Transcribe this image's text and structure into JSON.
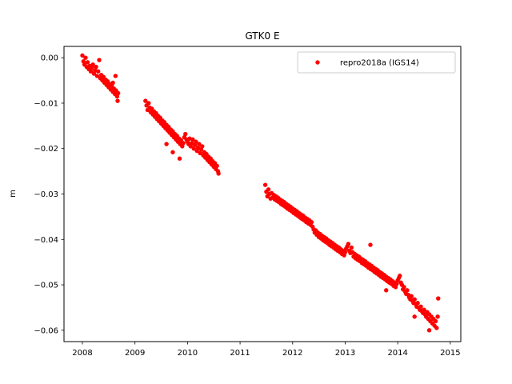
{
  "chart_data": {
    "type": "scatter",
    "title": "GTK0 E",
    "xlabel": "",
    "ylabel": "m",
    "xlim": [
      2007.65,
      2015.2
    ],
    "ylim": [
      -0.0625,
      0.0025
    ],
    "x_ticks": [
      2008,
      2009,
      2010,
      2011,
      2012,
      2013,
      2014,
      2015
    ],
    "x_tick_labels": [
      "2008",
      "2009",
      "2010",
      "2011",
      "2012",
      "2013",
      "2014",
      "2015"
    ],
    "y_ticks": [
      0.0,
      -0.01,
      -0.02,
      -0.03,
      -0.04,
      -0.05,
      -0.06
    ],
    "y_tick_labels": [
      "0.00",
      "−0.01",
      "−0.02",
      "−0.03",
      "−0.04",
      "−0.05",
      "−0.06"
    ],
    "grid": false,
    "legend_position": "top-right",
    "series": [
      {
        "name": "repro2018a (IGS14)",
        "color": "#ff0000",
        "marker": "circle",
        "points": [
          [
            2008.0,
            0.0005
          ],
          [
            2008.02,
            -0.0008
          ],
          [
            2008.04,
            -0.0015
          ],
          [
            2008.06,
            0.0
          ],
          [
            2008.08,
            -0.002
          ],
          [
            2008.1,
            -0.001
          ],
          [
            2008.12,
            -0.0025
          ],
          [
            2008.14,
            -0.0018
          ],
          [
            2008.16,
            -0.003
          ],
          [
            2008.18,
            -0.0022
          ],
          [
            2008.2,
            -0.0015
          ],
          [
            2008.22,
            -0.0035
          ],
          [
            2008.24,
            -0.0028
          ],
          [
            2008.26,
            -0.002
          ],
          [
            2008.28,
            -0.004
          ],
          [
            2008.3,
            -0.003
          ],
          [
            2008.32,
            -0.0005
          ],
          [
            2008.34,
            -0.0045
          ],
          [
            2008.36,
            -0.0038
          ],
          [
            2008.38,
            -0.005
          ],
          [
            2008.4,
            -0.0042
          ],
          [
            2008.42,
            -0.0055
          ],
          [
            2008.44,
            -0.0048
          ],
          [
            2008.46,
            -0.006
          ],
          [
            2008.48,
            -0.0052
          ],
          [
            2008.5,
            -0.0065
          ],
          [
            2008.52,
            -0.0058
          ],
          [
            2008.54,
            -0.007
          ],
          [
            2008.56,
            -0.0062
          ],
          [
            2008.58,
            -0.0075
          ],
          [
            2008.6,
            -0.0068
          ],
          [
            2008.62,
            -0.008
          ],
          [
            2008.64,
            -0.0072
          ],
          [
            2008.66,
            -0.0085
          ],
          [
            2008.67,
            -0.0095
          ],
          [
            2008.68,
            -0.0078
          ],
          [
            2008.63,
            -0.004
          ],
          [
            2008.58,
            -0.0055
          ],
          [
            2009.2,
            -0.0095
          ],
          [
            2009.22,
            -0.0105
          ],
          [
            2009.24,
            -0.0115
          ],
          [
            2009.26,
            -0.01
          ],
          [
            2009.28,
            -0.011
          ],
          [
            2009.3,
            -0.012
          ],
          [
            2009.32,
            -0.0112
          ],
          [
            2009.34,
            -0.0125
          ],
          [
            2009.36,
            -0.0118
          ],
          [
            2009.38,
            -0.013
          ],
          [
            2009.4,
            -0.0122
          ],
          [
            2009.42,
            -0.0135
          ],
          [
            2009.44,
            -0.0128
          ],
          [
            2009.46,
            -0.014
          ],
          [
            2009.48,
            -0.0132
          ],
          [
            2009.5,
            -0.0145
          ],
          [
            2009.52,
            -0.0138
          ],
          [
            2009.54,
            -0.015
          ],
          [
            2009.56,
            -0.0142
          ],
          [
            2009.58,
            -0.0155
          ],
          [
            2009.6,
            -0.0148
          ],
          [
            2009.62,
            -0.016
          ],
          [
            2009.64,
            -0.0152
          ],
          [
            2009.66,
            -0.0165
          ],
          [
            2009.68,
            -0.0158
          ],
          [
            2009.7,
            -0.017
          ],
          [
            2009.72,
            -0.0162
          ],
          [
            2009.74,
            -0.0175
          ],
          [
            2009.76,
            -0.0168
          ],
          [
            2009.78,
            -0.018
          ],
          [
            2009.8,
            -0.0172
          ],
          [
            2009.82,
            -0.0185
          ],
          [
            2009.84,
            -0.0178
          ],
          [
            2009.86,
            -0.019
          ],
          [
            2009.88,
            -0.0182
          ],
          [
            2009.9,
            -0.0195
          ],
          [
            2009.92,
            -0.0188
          ],
          [
            2009.94,
            -0.0175
          ],
          [
            2009.96,
            -0.0168
          ],
          [
            2009.98,
            -0.018
          ],
          [
            2010.0,
            -0.0185
          ],
          [
            2010.02,
            -0.019
          ],
          [
            2010.04,
            -0.0178
          ],
          [
            2010.06,
            -0.0195
          ],
          [
            2010.08,
            -0.0188
          ],
          [
            2010.1,
            -0.018
          ],
          [
            2010.12,
            -0.02
          ],
          [
            2010.14,
            -0.0192
          ],
          [
            2010.16,
            -0.0185
          ],
          [
            2010.18,
            -0.0205
          ],
          [
            2010.2,
            -0.0198
          ],
          [
            2010.22,
            -0.019
          ],
          [
            2010.24,
            -0.021
          ],
          [
            2010.26,
            -0.0202
          ],
          [
            2010.28,
            -0.0195
          ],
          [
            2010.3,
            -0.0215
          ],
          [
            2010.32,
            -0.0208
          ],
          [
            2010.34,
            -0.022
          ],
          [
            2010.36,
            -0.0212
          ],
          [
            2010.38,
            -0.0225
          ],
          [
            2010.4,
            -0.0218
          ],
          [
            2010.42,
            -0.023
          ],
          [
            2010.44,
            -0.0222
          ],
          [
            2010.46,
            -0.0235
          ],
          [
            2010.48,
            -0.0228
          ],
          [
            2010.5,
            -0.024
          ],
          [
            2010.52,
            -0.0232
          ],
          [
            2010.54,
            -0.0245
          ],
          [
            2010.56,
            -0.0238
          ],
          [
            2010.58,
            -0.025
          ],
          [
            2010.59,
            -0.0255
          ],
          [
            2009.85,
            -0.0222
          ],
          [
            2009.72,
            -0.0208
          ],
          [
            2009.6,
            -0.019
          ],
          [
            2011.48,
            -0.028
          ],
          [
            2011.5,
            -0.0295
          ],
          [
            2011.52,
            -0.0305
          ],
          [
            2011.54,
            -0.029
          ],
          [
            2011.56,
            -0.03
          ],
          [
            2011.58,
            -0.031
          ],
          [
            2011.6,
            -0.0298
          ],
          [
            2011.62,
            -0.0308
          ],
          [
            2011.64,
            -0.0302
          ],
          [
            2011.66,
            -0.0312
          ],
          [
            2011.68,
            -0.0305
          ],
          [
            2011.7,
            -0.0315
          ],
          [
            2011.72,
            -0.0308
          ],
          [
            2011.74,
            -0.0318
          ],
          [
            2011.76,
            -0.0312
          ],
          [
            2011.78,
            -0.0322
          ],
          [
            2011.8,
            -0.0315
          ],
          [
            2011.82,
            -0.0325
          ],
          [
            2011.84,
            -0.0318
          ],
          [
            2011.86,
            -0.0328
          ],
          [
            2011.88,
            -0.0322
          ],
          [
            2011.9,
            -0.0332
          ],
          [
            2011.92,
            -0.0325
          ],
          [
            2011.94,
            -0.0335
          ],
          [
            2011.96,
            -0.0328
          ],
          [
            2011.98,
            -0.0338
          ],
          [
            2012.0,
            -0.0332
          ],
          [
            2012.02,
            -0.0342
          ],
          [
            2012.04,
            -0.0335
          ],
          [
            2012.06,
            -0.0345
          ],
          [
            2012.08,
            -0.0338
          ],
          [
            2012.1,
            -0.0348
          ],
          [
            2012.12,
            -0.0342
          ],
          [
            2012.14,
            -0.0352
          ],
          [
            2012.16,
            -0.0345
          ],
          [
            2012.18,
            -0.0355
          ],
          [
            2012.2,
            -0.0348
          ],
          [
            2012.22,
            -0.0358
          ],
          [
            2012.24,
            -0.0352
          ],
          [
            2012.26,
            -0.0362
          ],
          [
            2012.28,
            -0.0355
          ],
          [
            2012.3,
            -0.0365
          ],
          [
            2012.32,
            -0.0358
          ],
          [
            2012.34,
            -0.0368
          ],
          [
            2012.36,
            -0.0362
          ],
          [
            2012.38,
            -0.0372
          ],
          [
            2012.4,
            -0.0378
          ],
          [
            2012.42,
            -0.0385
          ],
          [
            2012.44,
            -0.038
          ],
          [
            2012.46,
            -0.039
          ],
          [
            2012.48,
            -0.0385
          ],
          [
            2012.5,
            -0.0395
          ],
          [
            2012.52,
            -0.0388
          ],
          [
            2012.54,
            -0.0398
          ],
          [
            2012.56,
            -0.0392
          ],
          [
            2012.58,
            -0.0402
          ],
          [
            2012.6,
            -0.0395
          ],
          [
            2012.62,
            -0.0405
          ],
          [
            2012.64,
            -0.0398
          ],
          [
            2012.66,
            -0.0408
          ],
          [
            2012.68,
            -0.0402
          ],
          [
            2012.7,
            -0.0412
          ],
          [
            2012.72,
            -0.0405
          ],
          [
            2012.74,
            -0.0415
          ],
          [
            2012.76,
            -0.0408
          ],
          [
            2012.78,
            -0.0418
          ],
          [
            2012.8,
            -0.0412
          ],
          [
            2012.82,
            -0.0422
          ],
          [
            2012.84,
            -0.0415
          ],
          [
            2012.86,
            -0.0425
          ],
          [
            2012.88,
            -0.0418
          ],
          [
            2012.9,
            -0.0428
          ],
          [
            2012.92,
            -0.0422
          ],
          [
            2012.94,
            -0.0432
          ],
          [
            2012.96,
            -0.0425
          ],
          [
            2012.98,
            -0.0435
          ],
          [
            2013.0,
            -0.0428
          ],
          [
            2013.02,
            -0.042
          ],
          [
            2013.04,
            -0.0415
          ],
          [
            2013.06,
            -0.041
          ],
          [
            2013.08,
            -0.0425
          ],
          [
            2013.1,
            -0.043
          ],
          [
            2013.12,
            -0.0418
          ],
          [
            2013.14,
            -0.0428
          ],
          [
            2013.16,
            -0.0438
          ],
          [
            2013.18,
            -0.0432
          ],
          [
            2013.2,
            -0.0442
          ],
          [
            2013.22,
            -0.0435
          ],
          [
            2013.24,
            -0.0445
          ],
          [
            2013.26,
            -0.0438
          ],
          [
            2013.28,
            -0.0448
          ],
          [
            2013.3,
            -0.0442
          ],
          [
            2013.32,
            -0.0452
          ],
          [
            2013.34,
            -0.0445
          ],
          [
            2013.36,
            -0.0455
          ],
          [
            2013.38,
            -0.0448
          ],
          [
            2013.4,
            -0.0458
          ],
          [
            2013.42,
            -0.0452
          ],
          [
            2013.44,
            -0.0462
          ],
          [
            2013.46,
            -0.0455
          ],
          [
            2013.48,
            -0.0465
          ],
          [
            2013.5,
            -0.0458
          ],
          [
            2013.52,
            -0.0468
          ],
          [
            2013.54,
            -0.0462
          ],
          [
            2013.56,
            -0.0472
          ],
          [
            2013.58,
            -0.0465
          ],
          [
            2013.6,
            -0.0475
          ],
          [
            2013.62,
            -0.0468
          ],
          [
            2013.64,
            -0.0478
          ],
          [
            2013.66,
            -0.0472
          ],
          [
            2013.68,
            -0.0482
          ],
          [
            2013.7,
            -0.0475
          ],
          [
            2013.72,
            -0.0485
          ],
          [
            2013.74,
            -0.0478
          ],
          [
            2013.76,
            -0.0488
          ],
          [
            2013.78,
            -0.0482
          ],
          [
            2013.8,
            -0.0492
          ],
          [
            2013.82,
            -0.0485
          ],
          [
            2013.84,
            -0.0495
          ],
          [
            2013.86,
            -0.0488
          ],
          [
            2013.88,
            -0.0498
          ],
          [
            2013.9,
            -0.0492
          ],
          [
            2013.92,
            -0.0502
          ],
          [
            2013.94,
            -0.0495
          ],
          [
            2013.96,
            -0.0505
          ],
          [
            2013.98,
            -0.0498
          ],
          [
            2014.0,
            -0.049
          ],
          [
            2014.02,
            -0.0485
          ],
          [
            2014.04,
            -0.048
          ],
          [
            2014.06,
            -0.0495
          ],
          [
            2014.08,
            -0.05
          ],
          [
            2014.1,
            -0.051
          ],
          [
            2014.12,
            -0.0505
          ],
          [
            2014.14,
            -0.0515
          ],
          [
            2014.16,
            -0.052
          ],
          [
            2014.18,
            -0.0512
          ],
          [
            2014.2,
            -0.0522
          ],
          [
            2014.22,
            -0.0528
          ],
          [
            2014.24,
            -0.0532
          ],
          [
            2014.26,
            -0.0525
          ],
          [
            2014.28,
            -0.0535
          ],
          [
            2014.3,
            -0.054
          ],
          [
            2014.32,
            -0.0532
          ],
          [
            2014.34,
            -0.0542
          ],
          [
            2014.36,
            -0.0548
          ],
          [
            2014.38,
            -0.054
          ],
          [
            2014.4,
            -0.055
          ],
          [
            2014.42,
            -0.0555
          ],
          [
            2014.44,
            -0.0548
          ],
          [
            2014.46,
            -0.0558
          ],
          [
            2014.48,
            -0.0562
          ],
          [
            2014.5,
            -0.0555
          ],
          [
            2014.52,
            -0.0565
          ],
          [
            2014.54,
            -0.057
          ],
          [
            2014.56,
            -0.056
          ],
          [
            2014.58,
            -0.0575
          ],
          [
            2014.6,
            -0.0565
          ],
          [
            2014.62,
            -0.058
          ],
          [
            2014.64,
            -0.057
          ],
          [
            2014.66,
            -0.0585
          ],
          [
            2014.68,
            -0.0575
          ],
          [
            2014.7,
            -0.059
          ],
          [
            2014.72,
            -0.058
          ],
          [
            2014.74,
            -0.0595
          ],
          [
            2014.76,
            -0.057
          ],
          [
            2014.77,
            -0.053
          ],
          [
            2014.6,
            -0.06
          ],
          [
            2014.32,
            -0.057
          ],
          [
            2013.78,
            -0.0512
          ],
          [
            2013.48,
            -0.0412
          ]
        ]
      }
    ]
  }
}
